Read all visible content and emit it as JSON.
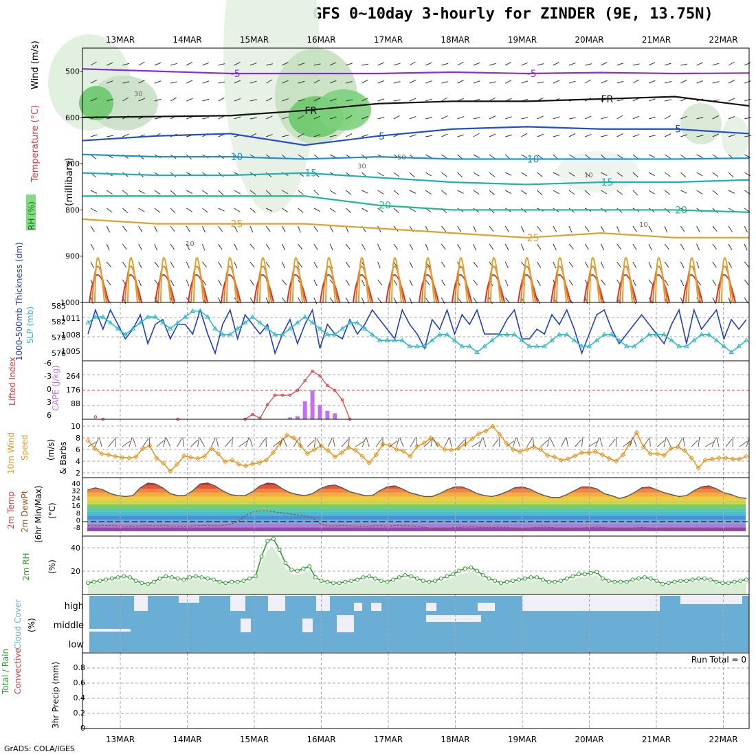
{
  "title": "GFS 0~10day 3-hourly for ZINDER (9E, 13.75N)",
  "credit": "GrADS: COLA/IGES",
  "colors": {
    "thickness": "#1f3fbf",
    "slp": "#30b8c8",
    "li": "#e03a3a",
    "cape": "#c070f0",
    "wind": "#e8961e",
    "rh": "#2a9a2a",
    "cloud": "#6aaed6",
    "temp_freeze": "#111111"
  },
  "chart_data": [
    {
      "type": "heatmap",
      "panel": "pressure-time cross section",
      "xlabels": [
        "13MAR",
        "14MAR",
        "15MAR",
        "16MAR",
        "17MAR",
        "18MAR",
        "19MAR",
        "20MAR",
        "21MAR",
        "22MAR"
      ],
      "ylabel": "(millibars)",
      "side_labels": [
        "Wind (m/s)",
        "Temperature (°C)",
        "RH (%)"
      ],
      "yticks": [
        500,
        600,
        700,
        800,
        900,
        1000
      ],
      "ylim": [
        1000,
        450
      ],
      "isotherms": [
        {
          "label": "-5",
          "color": "#8a2be2",
          "p": [
            495,
            500,
            505,
            505,
            505,
            502,
            505,
            503,
            505,
            504
          ]
        },
        {
          "label": "FR",
          "color": "#111111",
          "p": [
            600,
            598,
            596,
            585,
            570,
            565,
            565,
            560,
            555,
            575
          ]
        },
        {
          "label": "5",
          "color": "#1f4fd0",
          "p": [
            650,
            640,
            635,
            660,
            640,
            625,
            620,
            625,
            625,
            635
          ]
        },
        {
          "label": "10",
          "color": "#1e90d0",
          "p": [
            680,
            685,
            685,
            690,
            685,
            690,
            690,
            690,
            690,
            688
          ]
        },
        {
          "label": "15",
          "color": "#20b0b0",
          "p": [
            720,
            725,
            725,
            720,
            730,
            740,
            745,
            740,
            740,
            735
          ]
        },
        {
          "label": "20",
          "color": "#20b890",
          "p": [
            770,
            770,
            770,
            770,
            790,
            800,
            800,
            800,
            800,
            805
          ]
        },
        {
          "label": "25",
          "color": "#e0a030",
          "p": [
            820,
            830,
            830,
            830,
            840,
            850,
            860,
            850,
            860,
            860
          ]
        }
      ],
      "contour_labels": [
        "-5",
        "-5",
        "FR",
        "FR",
        "FR",
        "5",
        "5",
        "10",
        "10",
        "15",
        "15",
        "20",
        "20",
        "25",
        "10",
        "10",
        "30",
        "30",
        "50",
        "10"
      ]
    },
    {
      "type": "line",
      "panel": "Thickness / SLP",
      "ylabel_left": "1000-500mb Thickness (dm)",
      "ylabel_right": "SLP (mb)",
      "yticks_left": [
        "585",
        "582",
        "579",
        "576"
      ],
      "yticks_right": [
        "1011",
        "1008",
        "1005"
      ],
      "series": [
        {
          "name": "Thickness",
          "values": [
            580,
            585,
            581,
            585,
            582,
            579,
            581,
            584,
            578,
            582,
            583,
            579,
            582,
            582,
            580,
            585,
            580,
            576,
            582,
            585,
            579,
            584,
            582,
            580,
            582,
            576,
            580,
            583,
            578,
            582,
            585,
            577,
            582,
            580,
            579,
            583,
            580,
            582,
            585,
            583,
            581,
            579,
            585,
            582,
            580,
            577,
            583,
            581,
            585,
            580,
            584,
            582,
            585,
            580,
            580,
            580,
            583,
            585,
            579,
            579,
            581,
            580,
            584,
            582,
            585,
            581,
            576,
            580,
            584,
            585,
            581,
            578,
            580,
            582,
            584,
            582,
            580,
            578,
            582,
            585,
            578,
            585,
            581,
            583,
            585,
            579,
            583,
            581,
            583
          ]
        },
        {
          "name": "SLP",
          "values": [
            1010,
            1011,
            1011,
            1010,
            1009,
            1008,
            1009,
            1010,
            1011,
            1011,
            1010,
            1009,
            1010,
            1011,
            1012,
            1012,
            1011,
            1009,
            1008,
            1008,
            1009,
            1010,
            1011,
            1010,
            1009,
            1008,
            1008,
            1009,
            1010,
            1011,
            1010,
            1009,
            1008,
            1008,
            1009,
            1010,
            1010,
            1009,
            1008,
            1007,
            1007,
            1007,
            1007,
            1006,
            1006,
            1006,
            1007,
            1008,
            1008,
            1007,
            1006,
            1006,
            1005,
            1006,
            1007,
            1008,
            1008,
            1008,
            1007,
            1006,
            1006,
            1006,
            1007,
            1008,
            1008,
            1007,
            1006,
            1006,
            1007,
            1008,
            1008,
            1007,
            1006,
            1006,
            1007,
            1008,
            1008,
            1008,
            1007,
            1006,
            1006,
            1007,
            1008,
            1008,
            1007,
            1006,
            1005,
            1006,
            1007
          ]
        }
      ]
    },
    {
      "type": "bar",
      "panel": "CAPE / Lifted Index",
      "ylabel_left": "Lifted Index",
      "ylabel_right": "CAPE (J/kg)",
      "yticks_left": [
        "-6",
        "-3",
        "0",
        "3",
        "6"
      ],
      "yticks_right": [
        "264",
        "176",
        "88"
      ],
      "series": [
        {
          "name": "CAPE",
          "values": [
            0,
            0,
            0,
            0,
            0,
            0,
            0,
            0,
            0,
            0,
            0,
            0,
            0,
            0,
            0,
            0,
            0,
            0,
            0,
            0,
            0,
            0,
            0,
            0,
            0,
            0,
            0,
            0,
            0,
            0,
            0,
            0,
            0,
            0,
            0,
            0,
            0,
            0,
            0,
            0,
            0,
            0,
            0,
            0,
            0,
            0,
            0,
            0,
            0,
            0,
            0,
            0,
            0,
            0,
            0,
            0,
            0,
            0,
            0,
            0,
            0,
            0,
            0,
            0,
            0,
            0,
            0,
            0,
            0,
            0,
            0,
            0,
            0,
            0,
            0,
            0,
            0,
            0,
            0,
            0,
            0,
            0,
            0,
            0,
            0,
            0,
            0,
            0,
            0
          ]
        }
      ],
      "cape_bars": [
        [
          26,
          2
        ],
        [
          27,
          15
        ],
        [
          28,
          25
        ],
        [
          29,
          150
        ],
        [
          30,
          240
        ],
        [
          31,
          120
        ],
        [
          32,
          70
        ],
        [
          33,
          50
        ],
        [
          34,
          0
        ]
      ],
      "li_points": [
        [
          1,
          5.5
        ],
        [
          2,
          6
        ],
        [
          12,
          6
        ],
        [
          21,
          6
        ],
        [
          22,
          5
        ],
        [
          23,
          5.8
        ],
        [
          24,
          3
        ],
        [
          25,
          1
        ],
        [
          26,
          1
        ],
        [
          27,
          1
        ],
        [
          28,
          0
        ],
        [
          29,
          -2
        ],
        [
          30,
          -4
        ],
        [
          31,
          -3
        ],
        [
          32,
          -1
        ],
        [
          33,
          0
        ],
        [
          34,
          2
        ],
        [
          35,
          6
        ]
      ]
    },
    {
      "type": "line",
      "panel": "10m Wind Speed & Barbs",
      "ylabel": "10m Wind Speed & Barbs (m/s)",
      "yticks": [
        "10",
        "8",
        "6",
        "4",
        "2"
      ],
      "series": [
        {
          "name": "Wind",
          "values": [
            7.5,
            6,
            5,
            4.8,
            4.5,
            4.3,
            4.2,
            4.4,
            6,
            6.5,
            4.2,
            3.2,
            1.7,
            3,
            4.6,
            4.3,
            4.1,
            4.5,
            6,
            5,
            3.5,
            3.8,
            3,
            2.7,
            3.1,
            3.3,
            3.8,
            5.2,
            7,
            8.5,
            8,
            6.5,
            5,
            5.8,
            6.5,
            5.6,
            4.4,
            5.2,
            6.2,
            5.7,
            4.5,
            3.3,
            4.8,
            6.8,
            6.6,
            5.8,
            5.5,
            4.5,
            6.4,
            7,
            8,
            6.8,
            5.8,
            5.7,
            6,
            6.8,
            7.8,
            8.8,
            9.3,
            10.2,
            8.7,
            7,
            5.8,
            5.4,
            5.8,
            6.3,
            5.8,
            4.7,
            4.4,
            3.8,
            4,
            4.6,
            5.2,
            5.2,
            5.4,
            4.8,
            4.1,
            3.6,
            4.8,
            7,
            9,
            6.3,
            5,
            5,
            4.7,
            6,
            6.3,
            5.6,
            4.2,
            2.3,
            3.8,
            4,
            4.2,
            4.2,
            4,
            4,
            4.5
          ]
        }
      ]
    },
    {
      "type": "area",
      "panel": "2m Temp / DewPt",
      "ylabel": "2m Temp 2m DewPt (6hr Min/Max) (°C)",
      "yticks": [
        "40",
        "32",
        "24",
        "16",
        "8",
        "0",
        "-8"
      ],
      "series": [
        {
          "name": "Temp",
          "values": [
            33,
            35,
            33,
            29,
            27,
            26,
            27,
            35,
            40,
            39,
            35,
            29,
            27,
            27,
            32,
            39,
            40,
            37,
            32,
            28,
            27,
            27,
            31,
            37,
            40,
            39,
            34,
            30,
            28,
            27,
            29,
            34,
            37,
            38,
            35,
            31,
            29,
            27,
            27,
            32,
            36,
            37,
            34,
            30,
            28,
            26,
            26,
            29,
            33,
            36,
            36,
            33,
            29,
            27,
            26,
            28,
            31,
            35,
            36,
            34,
            30,
            27,
            25,
            25,
            28,
            32,
            36,
            36,
            34,
            29,
            27,
            24,
            26,
            30,
            35,
            36,
            33,
            30,
            28,
            26,
            27,
            32,
            36,
            37,
            34,
            30,
            28,
            25,
            24
          ]
        },
        {
          "name": "DewPt",
          "values": [
            -4,
            -4.5,
            -4,
            -4,
            -4.5,
            -5,
            -5,
            -4.5,
            -4,
            -4.5,
            -4,
            -4.5,
            -5,
            -5,
            -4.5,
            -4,
            -4,
            -4.5,
            -4,
            -3,
            0,
            6,
            10,
            11,
            11,
            10,
            9,
            8,
            7,
            6,
            4,
            -2,
            -4.5,
            -4.5,
            -4,
            -4.5,
            -5,
            -5,
            -4.5,
            -4,
            -5,
            -4,
            -4,
            -4.5,
            -5,
            -6,
            -7,
            -7.5,
            -7,
            -6,
            -5.5,
            -5,
            -5.5,
            -6,
            -6,
            -5.5,
            -6,
            -7,
            -7,
            -6.5,
            -6,
            -5.5,
            -6,
            -7,
            -7.5,
            -7,
            -6.5,
            -6,
            -5.5,
            -6,
            -7,
            -7,
            -7,
            -6.5,
            -6,
            -6.5,
            -7,
            -7.5,
            -7.5,
            -7,
            -7,
            -7.5,
            -8,
            -8,
            -7.5,
            -7.5,
            -8,
            -8,
            -7.5
          ]
        }
      ]
    },
    {
      "type": "line",
      "panel": "2m RH",
      "ylabel": "2m RH (%)",
      "yticks": [
        "40",
        "20"
      ],
      "series": [
        {
          "name": "RH",
          "values": [
            8,
            9,
            10,
            11,
            12,
            13,
            14,
            13,
            10,
            8,
            7,
            9,
            12,
            14,
            13,
            12,
            11,
            13,
            14,
            13,
            12,
            11,
            9,
            8,
            9,
            9,
            10,
            12,
            14,
            32,
            46,
            48,
            38,
            26,
            20,
            19,
            21,
            23,
            13,
            10,
            9,
            8,
            8,
            9,
            10,
            11,
            13,
            14,
            12,
            10,
            9,
            11,
            13,
            15,
            14,
            12,
            10,
            9,
            10,
            12,
            14,
            16,
            19,
            21,
            22,
            19,
            15,
            12,
            10,
            8,
            9,
            10,
            11,
            12,
            13,
            13,
            11,
            9,
            9,
            10,
            12,
            14,
            16,
            16,
            17,
            18,
            12,
            10,
            9,
            9,
            9,
            11,
            12,
            13,
            12,
            10,
            7,
            8,
            9,
            10,
            10,
            11,
            12,
            12,
            11,
            9,
            8,
            8,
            9,
            10,
            11
          ]
        }
      ]
    },
    {
      "type": "heatmap",
      "panel": "Cloud Cover",
      "ylabel": "Cloud Cover (%)",
      "rows": [
        "high",
        "middle",
        "low"
      ]
    },
    {
      "type": "bar",
      "panel": "3hr Precip",
      "ylabel": "3hr Precip (mm)",
      "side_labels": [
        "Total / Rain",
        "Convective"
      ],
      "yticks": [
        "0.8",
        "0.6",
        "0.4",
        "0.2",
        "0"
      ],
      "annotation": "Run Total = 0",
      "values": []
    }
  ]
}
